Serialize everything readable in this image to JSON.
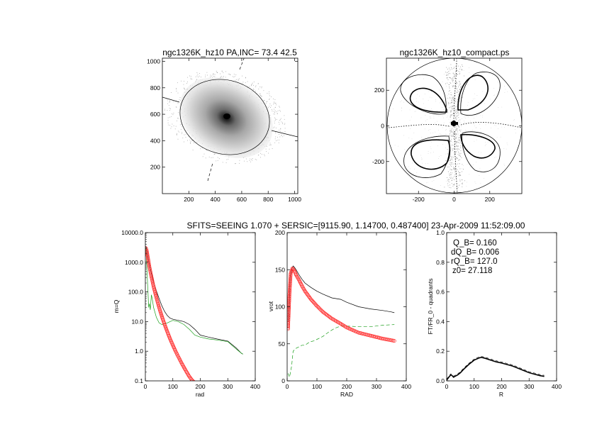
{
  "banner": "SFITS=SEEING 1.070 + SERSIC=[9115.90, 1.14700, 0.487400]  23-Apr-2009 11:52:09.00",
  "colors": {
    "black": "#000000",
    "red": "#ff2a2a",
    "green": "#1a9e1a",
    "gray": "#808080"
  },
  "chart_data": [
    {
      "id": "image",
      "type": "scatter",
      "title": "ngc1326K_hz10 PA,INC= 73.4 42.5",
      "xlim": [
        0,
        1024
      ],
      "ylim": [
        0,
        1024
      ],
      "xticks": [
        200,
        400,
        600,
        800,
        1000
      ],
      "yticks": [
        200,
        400,
        600,
        800,
        1000
      ],
      "center": [
        500,
        570
      ],
      "ellipse": {
        "center": [
          512,
          540
        ],
        "semi_major": 330,
        "semi_minor": 245,
        "pa_deg": 73.4
      },
      "major_axis": [
        [
          0,
          700
        ],
        [
          1024,
          410
        ]
      ],
      "minor_axis": [
        [
          360,
          100
        ],
        [
          665,
          1024
        ]
      ]
    },
    {
      "id": "compact",
      "type": "contour",
      "title": "ngc1326K_hz10_compact.ps",
      "xlim": [
        -380,
        380
      ],
      "ylim": [
        -380,
        380
      ],
      "xticks": [
        -200,
        0,
        200
      ],
      "yticks": [
        -200,
        0,
        200
      ],
      "radius": 380
    },
    {
      "id": "mQ",
      "type": "line",
      "xlabel": "rad",
      "ylabel": "m=Q",
      "xlim": [
        0,
        400
      ],
      "ylim": [
        0.1,
        10000
      ],
      "yscale": "log",
      "xticks": [
        0,
        100,
        200,
        300,
        400
      ],
      "yticks": [
        0.1,
        1,
        10,
        100,
        1000,
        10000
      ],
      "yticklabels": [
        "0.1",
        "1.0",
        "10.0",
        "100.0",
        "1000.0",
        "10000.0"
      ],
      "series": [
        {
          "color": "black",
          "x": [
            2,
            5,
            10,
            15,
            20,
            30,
            40,
            50,
            60,
            70,
            80,
            90,
            100,
            120,
            140,
            160,
            180,
            200,
            230,
            260,
            300,
            330,
            350,
            355
          ],
          "y": [
            3500,
            2600,
            1300,
            800,
            500,
            230,
            110,
            60,
            34,
            22,
            16,
            13,
            12,
            11,
            10,
            8,
            5.5,
            3.5,
            3.0,
            2.6,
            2.2,
            1.3,
            0.85,
            0.8
          ]
        },
        {
          "color": "green",
          "x": [
            2,
            5,
            8,
            12,
            15,
            18,
            22,
            25,
            30,
            40,
            50,
            60,
            70,
            80,
            90,
            100,
            120,
            140,
            160,
            180,
            200,
            230,
            260,
            300,
            330,
            350,
            355
          ],
          "y": [
            3000,
            900,
            200,
            30,
            40,
            25,
            80,
            60,
            30,
            14,
            9,
            8,
            8.5,
            9,
            10,
            11,
            10,
            8,
            5.5,
            3.5,
            3.0,
            2.6,
            2.4,
            2.1,
            1.2,
            0.85,
            0.8
          ]
        },
        {
          "color": "red",
          "marker": "circle",
          "x": [
            2,
            5,
            10,
            15,
            20,
            30,
            40,
            50,
            60,
            70,
            80,
            90,
            100,
            110,
            120,
            130,
            140,
            150,
            160,
            170,
            178
          ],
          "y": [
            3000,
            2500,
            1300,
            700,
            400,
            150,
            65,
            30,
            15,
            8,
            4.5,
            2.6,
            1.6,
            1.0,
            0.65,
            0.43,
            0.29,
            0.2,
            0.14,
            0.105,
            0.09
          ]
        }
      ]
    },
    {
      "id": "vrot",
      "type": "line",
      "xlabel": "RAD",
      "ylabel": "vrot",
      "xlim": [
        0,
        400
      ],
      "ylim": [
        0,
        200
      ],
      "xticks": [
        0,
        100,
        200,
        300,
        400
      ],
      "yticks": [
        0,
        50,
        100,
        150,
        200
      ],
      "series": [
        {
          "color": "black",
          "x": [
            5,
            10,
            15,
            20,
            25,
            30,
            40,
            50,
            60,
            80,
            100,
            120,
            150,
            180,
            200,
            240,
            280,
            320,
            350,
            360
          ],
          "y": [
            80,
            140,
            150,
            155,
            153,
            150,
            143,
            137,
            132,
            126,
            121,
            117,
            112,
            110,
            106,
            100,
            97,
            95,
            93,
            92
          ]
        },
        {
          "color": "green",
          "dash": true,
          "x": [
            3,
            8,
            15,
            20,
            25,
            30,
            40,
            50,
            60,
            70,
            80,
            90,
            100,
            120,
            140,
            160,
            180,
            200,
            240,
            280,
            320,
            360
          ],
          "y": [
            10,
            5,
            20,
            40,
            42,
            44,
            46,
            48,
            48,
            51,
            53,
            54,
            56,
            60,
            66,
            71,
            74,
            74,
            73,
            73,
            75,
            76
          ]
        },
        {
          "color": "red",
          "marker": "circle",
          "x": [
            3,
            8,
            12,
            18,
            25,
            30,
            40,
            50,
            60,
            80,
            100,
            120,
            150,
            180,
            200,
            240,
            280,
            320,
            360
          ],
          "y": [
            70,
            120,
            145,
            152,
            148,
            143,
            136,
            128,
            121,
            110,
            101,
            93,
            84,
            77,
            72,
            65,
            61,
            57,
            54
          ]
        }
      ]
    },
    {
      "id": "quadrants",
      "type": "line",
      "xlabel": "R",
      "ylabel": "FT/FR_0 - quadrants",
      "xlim": [
        0,
        400
      ],
      "ylim": [
        0,
        1
      ],
      "xticks": [
        0,
        100,
        200,
        300,
        400
      ],
      "yticks": [
        0,
        0.2,
        0.4,
        0.6,
        0.8,
        1.0
      ],
      "yticklabels": [
        "0.0",
        "0.2",
        "0.4",
        "0.6",
        "0.8",
        "1.0"
      ],
      "annotations": [
        "Q_B=  0.160",
        "dQ_B=  0.006",
        "rQ_B=  127.0",
        "z0= 27.118"
      ],
      "series": [
        {
          "color": "black",
          "x": [
            0,
            10,
            15,
            20,
            25,
            30,
            40,
            50,
            60,
            80,
            100,
            120,
            127,
            140,
            160,
            180,
            200,
            220,
            240,
            260,
            280,
            300,
            320,
            340,
            355
          ],
          "y": [
            0.005,
            0.03,
            0.04,
            0.035,
            0.025,
            0.03,
            0.04,
            0.055,
            0.075,
            0.11,
            0.14,
            0.156,
            0.158,
            0.152,
            0.14,
            0.128,
            0.12,
            0.11,
            0.1,
            0.085,
            0.07,
            0.055,
            0.045,
            0.035,
            0.03
          ]
        }
      ]
    }
  ]
}
